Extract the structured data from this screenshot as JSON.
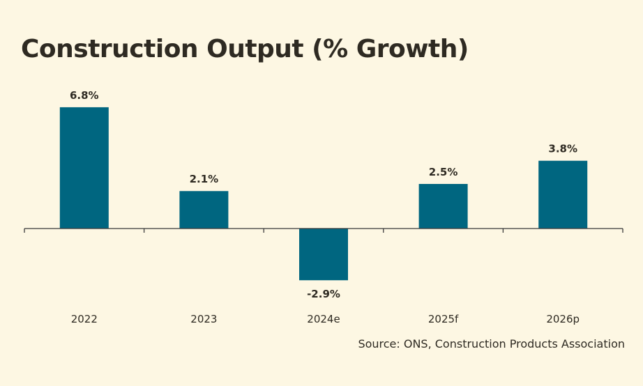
{
  "chart_data": {
    "type": "bar",
    "title": "Construction Output (% Growth)",
    "categories": [
      "2022",
      "2023",
      "2024e",
      "2025f",
      "2026p"
    ],
    "values": [
      6.8,
      2.1,
      -2.9,
      2.5,
      3.8
    ],
    "value_labels": [
      "6.8%",
      "2.1%",
      "-2.9%",
      "2.5%",
      "3.8%"
    ],
    "xlabel": "",
    "ylabel": "",
    "grid": false,
    "bar_color": "#006680",
    "source": "Source: ONS, Construction Products Association"
  }
}
